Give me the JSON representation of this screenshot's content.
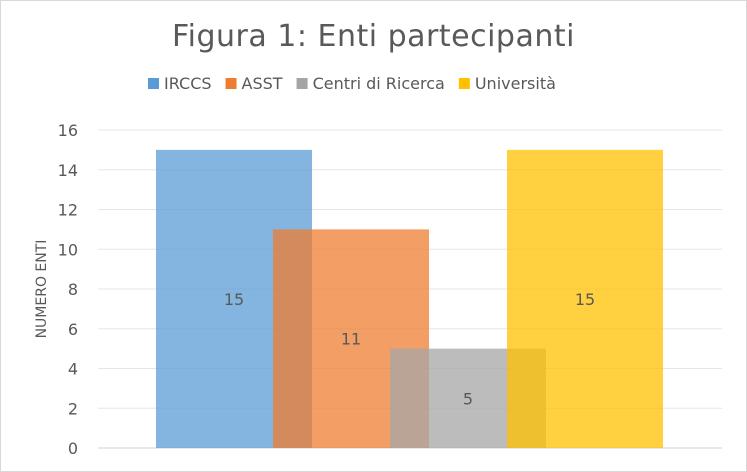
{
  "chart_data": {
    "type": "bar",
    "title": "Figura 1: Enti partecipanti",
    "xlabel": "",
    "ylabel": "NUMERO ENTI",
    "ylim": [
      0,
      16
    ],
    "yticks": [
      0,
      2,
      4,
      6,
      8,
      10,
      12,
      14,
      16
    ],
    "grid": true,
    "legend_position": "top",
    "overlapping_bars": true,
    "series": [
      {
        "name": "IRCCS",
        "value": 15,
        "label": "15",
        "color": "#5B9BD5"
      },
      {
        "name": "ASST",
        "value": 11,
        "label": "11",
        "color": "#ED7D31"
      },
      {
        "name": "Centri di Ricerca",
        "value": 5,
        "label": "5",
        "color": "#A5A5A5"
      },
      {
        "name": "Università",
        "value": 15,
        "label": "15",
        "color": "#FFC000"
      }
    ]
  }
}
